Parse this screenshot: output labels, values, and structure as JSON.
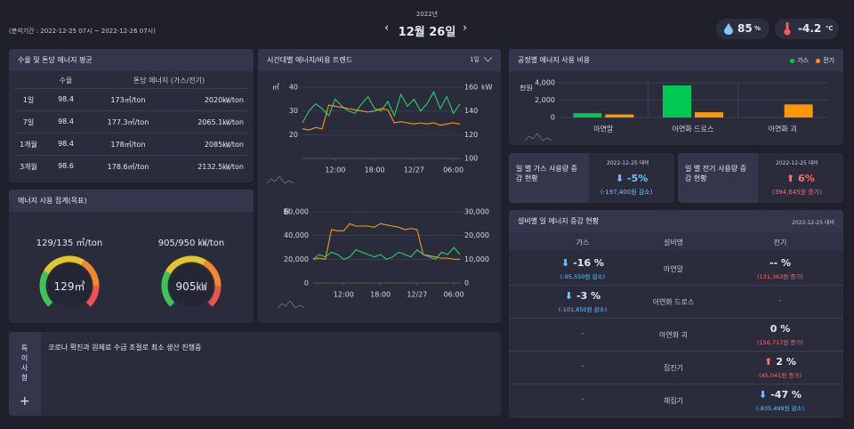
{
  "header": {
    "period": "(분석기간 : 2022-12-25 07시 ~ 2022-12-26 07시)",
    "year": "2022년",
    "date": "12월 26일",
    "humidity": "85",
    "humidity_unit": "%",
    "temperature": "-4.2",
    "temperature_unit": "℃"
  },
  "yield_panel": {
    "title": "수율 및 톤당 에너지 평균",
    "columns": [
      "수율",
      "톤당 에너지 (가스/전기)"
    ],
    "rows": [
      [
        "1일",
        "98.4",
        "173㎥/ton",
        "2020㎾/ton"
      ],
      [
        "7일",
        "98.4",
        "177.3㎥/ton",
        "2065.1㎾/ton"
      ],
      [
        "1개월",
        "98.4",
        "178㎥/ton",
        "2085㎾/ton"
      ],
      [
        "3개월",
        "98.6",
        "178.6㎥/ton",
        "2132.5㎾/ton"
      ]
    ]
  },
  "usage_panel": {
    "title": "에너지 사용 집계(목표)",
    "gauges": [
      {
        "label": "129/135 ㎥/ton",
        "center": "129㎥"
      },
      {
        "label": "905/950 ㎾/ton",
        "center": "905㎾"
      }
    ]
  },
  "notes_panel": {
    "title": "특이사항",
    "text": "코로나 확진과 원제료 수급 조절로 최소 생산 진행중"
  },
  "trend_panel": {
    "title": "시간대별 에너지/비용 트렌드",
    "period": "1일",
    "charts": [
      {
        "type": "line",
        "y_unit": "㎥",
        "y2_unit": "kW",
        "xlim": [
          0,
          24
        ],
        "xticks": [
          {
            "value": 5,
            "label": "12:00"
          },
          {
            "value": 11,
            "label": "18:00"
          },
          {
            "value": 17,
            "label": "12/27"
          },
          {
            "value": 23,
            "label": "06:00"
          }
        ],
        "ylim": [
          10,
          40
        ],
        "yticks": [
          20,
          30,
          40
        ],
        "y2lim": [
          100,
          160
        ],
        "y2ticks": [
          100,
          120,
          140,
          160
        ],
        "x": [
          0,
          1,
          2,
          3,
          4,
          5,
          6,
          7,
          8,
          9,
          10,
          11,
          12,
          13,
          14,
          15,
          16,
          17,
          18,
          19,
          20,
          21,
          22,
          23,
          24
        ],
        "series": [
          {
            "color": "#2ecc71",
            "values": [
              25,
              30,
              33,
              31,
              28,
              35,
              32,
              30,
              29,
              33,
              36,
              31,
              30,
              34,
              28,
              37,
              32,
              35,
              30,
              33,
              38,
              31,
              36,
              29,
              33
            ]
          },
          {
            "color": "#f39c12",
            "axis": "y2",
            "values": [
              125,
              124,
              126,
              125,
              145,
              144,
              143,
              142,
              141,
              140,
              139,
              140,
              142,
              141,
              130,
              131,
              130,
              129,
              130,
              129,
              130,
              128,
              129,
              130,
              129
            ]
          }
        ]
      },
      {
        "type": "line",
        "y_unit": "원",
        "xlim": [
          0,
          24
        ],
        "xticks": [
          {
            "value": 5,
            "label": "12:00"
          },
          {
            "value": 11,
            "label": "18:00"
          },
          {
            "value": 17,
            "label": "12/27"
          },
          {
            "value": 23,
            "label": "06:00"
          }
        ],
        "ylim": [
          0,
          60000
        ],
        "yticks": [
          0,
          {
            "value": 20000,
            "label": "20,000"
          },
          {
            "value": 40000,
            "label": "40,000"
          },
          {
            "value": 60000,
            "label": "60,000"
          }
        ],
        "y2lim": [
          0,
          30000
        ],
        "y2ticks": [
          0,
          {
            "value": 10000,
            "label": "10,000"
          },
          {
            "value": 20000,
            "label": "20,000"
          },
          {
            "value": 30000,
            "label": "30,000"
          }
        ],
        "x": [
          0,
          1,
          2,
          3,
          4,
          5,
          6,
          7,
          8,
          9,
          10,
          11,
          12,
          13,
          14,
          15,
          16,
          17,
          18,
          19,
          20,
          21,
          22,
          23,
          24
        ],
        "series": [
          {
            "color": "#f39c12",
            "values": [
              20000,
              21000,
              20000,
              45000,
              44000,
              44000,
              50000,
              48000,
              48000,
              48000,
              47000,
              50000,
              49000,
              48000,
              47000,
              45000,
              46000,
              45000,
              24000,
              23000,
              22000,
              21000,
              21000,
              20000,
              20000
            ]
          },
          {
            "color": "#2ecc71",
            "axis": "y2",
            "values": [
              10000,
              12000,
              11000,
              13000,
              12000,
              10000,
              11000,
              14000,
              13000,
              12000,
              11000,
              12000,
              10000,
              11000,
              13000,
              12000,
              11000,
              14000,
              12000,
              11000,
              10000,
              13000,
              12000,
              15000,
              12000
            ]
          }
        ]
      }
    ]
  },
  "cost_panel": {
    "title": "공정별 에너지 사용 비용",
    "chart": {
      "type": "bar",
      "y_label": "천원",
      "categories": [
        "아연말",
        "아연화 드로스",
        "아연화 괴"
      ],
      "ylim": [
        0,
        4000
      ],
      "yticks": [
        0,
        {
          "value": 2000,
          "label": "2,000"
        },
        {
          "value": 4000,
          "label": "4,000"
        }
      ],
      "series": [
        {
          "name": "가스",
          "color": "#00c853",
          "values": [
            500,
            3700,
            0
          ]
        },
        {
          "name": "전기",
          "color": "#ff9800",
          "values": [
            350,
            600,
            1500
          ]
        }
      ]
    }
  },
  "gas_daily": {
    "title": "일 별 가스 사용량 증감 현황",
    "compare": "2022-12-25 대비",
    "change": "-5%",
    "amount": "(-197,400원 감소)"
  },
  "elec_daily": {
    "title": "일 별 전기 사용량 증감 현황",
    "compare": "2022-12-25 대비",
    "change": "6%",
    "amount": "(394,645원 증가)"
  },
  "equipment_panel": {
    "title": "설비별 일 에너지 증감 현황",
    "compare": "2022-12-25 대비",
    "columns": [
      "가스",
      "설비명",
      "전기"
    ],
    "rows": [
      {
        "gas": "-16 %",
        "gas_amount": "(-95,550원 감소)",
        "name": "아연말",
        "elec": "-- %",
        "elec_amount": "(131,363원 증가)"
      },
      {
        "gas": "-3 %",
        "gas_amount": "(-101,850원 감소)",
        "name": "아연화 드로스",
        "elec": "-"
      },
      {
        "gas": "-",
        "name": "아연화 괴",
        "elec": "0 %",
        "elec_amount": "(156,717원 증가)"
      },
      {
        "gas": "-",
        "name": "집진기",
        "elec": "2 %",
        "elec_amount": "(45,041원 증가)"
      },
      {
        "gas": "-",
        "name": "채집기",
        "elec": "-47 %",
        "elec_amount": "(-835,499원 감소)"
      }
    ]
  }
}
